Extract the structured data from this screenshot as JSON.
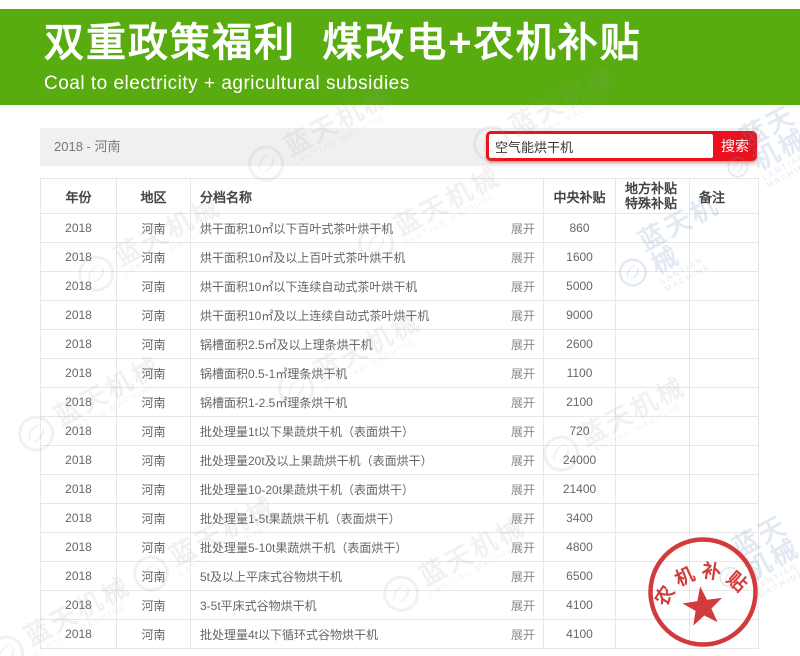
{
  "header": {
    "title": "双重政策福利  煤改电+农机补贴",
    "subtitle": "Coal to electricity + agricultural subsidies"
  },
  "toolbar": {
    "filter_label": "2018 - 河南",
    "search_value": "空气能烘干机",
    "search_button": "搜索"
  },
  "table": {
    "columns": {
      "year": "年份",
      "region": "地区",
      "name": "分档名称",
      "central": "中央补贴",
      "local1": "地方补贴",
      "local2": "特殊补贴",
      "note": "备注"
    },
    "expand_label": "展开",
    "rows": [
      {
        "year": "2018",
        "region": "河南",
        "name": "烘干面积10㎡以下百叶式茶叶烘干机",
        "central": "860",
        "local": "",
        "note": ""
      },
      {
        "year": "2018",
        "region": "河南",
        "name": "烘干面积10㎡及以上百叶式茶叶烘干机",
        "central": "1600",
        "local": "",
        "note": ""
      },
      {
        "year": "2018",
        "region": "河南",
        "name": "烘干面积10㎡以下连续自动式茶叶烘干机",
        "central": "5000",
        "local": "",
        "note": ""
      },
      {
        "year": "2018",
        "region": "河南",
        "name": "烘干面积10㎡及以上连续自动式茶叶烘干机",
        "central": "9000",
        "local": "",
        "note": ""
      },
      {
        "year": "2018",
        "region": "河南",
        "name": "锅槽面积2.5㎡及以上理条烘干机",
        "central": "2600",
        "local": "",
        "note": ""
      },
      {
        "year": "2018",
        "region": "河南",
        "name": "锅槽面积0.5-1㎡理条烘干机",
        "central": "1100",
        "local": "",
        "note": ""
      },
      {
        "year": "2018",
        "region": "河南",
        "name": "锅槽面积1-2.5㎡理条烘干机",
        "central": "2100",
        "local": "",
        "note": ""
      },
      {
        "year": "2018",
        "region": "河南",
        "name": "批处理量1t以下果蔬烘干机（表面烘干）",
        "central": "720",
        "local": "",
        "note": ""
      },
      {
        "year": "2018",
        "region": "河南",
        "name": "批处理量20t及以上果蔬烘干机（表面烘干）",
        "central": "24000",
        "local": "",
        "note": ""
      },
      {
        "year": "2018",
        "region": "河南",
        "name": "批处理量10-20t果蔬烘干机（表面烘干）",
        "central": "21400",
        "local": "",
        "note": ""
      },
      {
        "year": "2018",
        "region": "河南",
        "name": "批处理量1-5t果蔬烘干机（表面烘干）",
        "central": "3400",
        "local": "",
        "note": ""
      },
      {
        "year": "2018",
        "region": "河南",
        "name": "批处理量5-10t果蔬烘干机（表面烘干）",
        "central": "4800",
        "local": "",
        "note": ""
      },
      {
        "year": "2018",
        "region": "河南",
        "name": "5t及以上平床式谷物烘干机",
        "central": "6500",
        "local": "",
        "note": ""
      },
      {
        "year": "2018",
        "region": "河南",
        "name": "3-5t平床式谷物烘干机",
        "central": "4100",
        "local": "",
        "note": ""
      },
      {
        "year": "2018",
        "region": "河南",
        "name": "批处理量4t以下循环式谷物烘干机",
        "central": "4100",
        "local": "",
        "note": ""
      }
    ]
  },
  "stamp": {
    "text": "农机补贴"
  },
  "watermark": {
    "text": "蓝天机械",
    "subtext": "LANTIAN MACHINE"
  },
  "colors": {
    "green": "#58ac10",
    "red": "#e8111d",
    "stamp_red": "#d23b3b"
  }
}
